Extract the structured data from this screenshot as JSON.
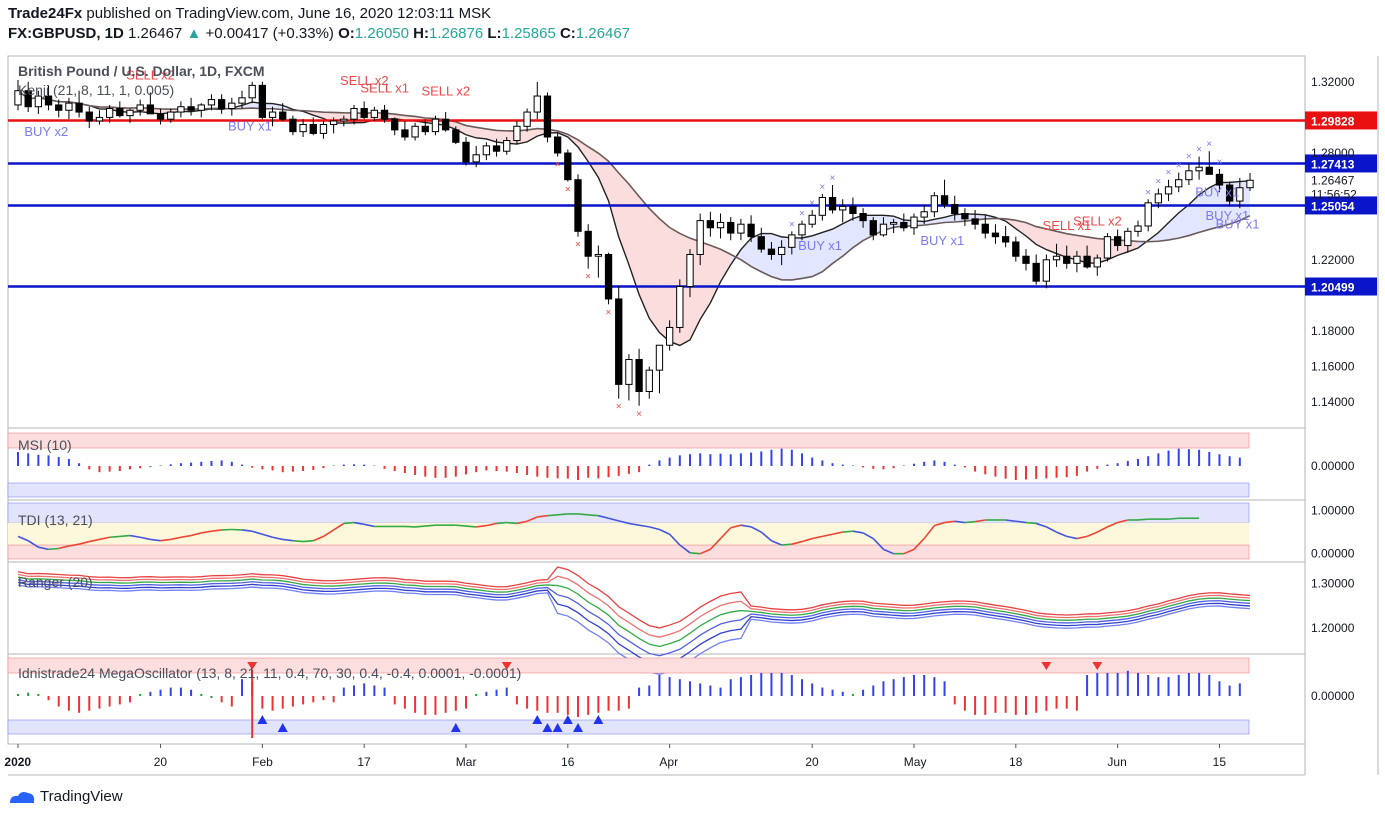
{
  "header": {
    "publisher": "Trade24Fx",
    "published_text": "published on TradingView.com, June 16, 2020 12:03:11 MSK",
    "symbol": "FX:GBPUSD, 1D",
    "last": "1.26467",
    "change": "+0.00417 (+0.33%)",
    "o_label": "O:",
    "o": "1.26050",
    "h_label": "H:",
    "h": "1.26876",
    "l_label": "L:",
    "l": "1.25865",
    "c_label": "C:",
    "c": "1.26467"
  },
  "footer": {
    "brand": "TradingView"
  },
  "colors": {
    "up": "#ffffff",
    "down": "#000000",
    "blue_line": "#0a14c8",
    "red_line": "#e81010",
    "sell": "#f04848",
    "buy": "#7a7af0"
  },
  "chart_data": [
    {
      "type": "candlestick",
      "title": "British Pound / U.S. Dollar, 1D, FXCM",
      "indicator_label": "Kenji (21, 8, 11, 1, 0.005)",
      "ylim": [
        1.13,
        1.33
      ],
      "y_ticks": [
        "1.32000",
        "1.28000",
        "1.26467",
        "1.22000",
        "1.18000",
        "1.16000",
        "1.14000"
      ],
      "x_ticks": [
        "2020",
        "20",
        "Feb",
        "17",
        "Mar",
        "16",
        "Apr",
        "20",
        "May",
        "18",
        "Jun",
        "15"
      ],
      "x_tick_index": [
        0,
        14,
        24,
        34,
        44,
        54,
        64,
        78,
        88,
        98,
        108,
        118
      ],
      "time_label": "11:56:52",
      "horizontal_levels": [
        {
          "value": 1.29828,
          "label": "1.29828",
          "color": "#e81010"
        },
        {
          "value": 1.27413,
          "label": "1.27413",
          "color": "#0a14c8"
        },
        {
          "value": 1.25054,
          "label": "1.25054",
          "color": "#0a14c8"
        },
        {
          "value": 1.20499,
          "label": "1.20499",
          "color": "#0a14c8"
        }
      ],
      "signals": [
        {
          "text": "BUY x2",
          "i": 2,
          "kind": "buy"
        },
        {
          "text": "SELL x2",
          "i": 12,
          "kind": "sell"
        },
        {
          "text": "BUY x1",
          "i": 22,
          "kind": "buy"
        },
        {
          "text": "SELL x2",
          "i": 33,
          "kind": "sell"
        },
        {
          "text": "SELL x1",
          "i": 35,
          "kind": "sell"
        },
        {
          "text": "SELL x2",
          "i": 41,
          "kind": "sell"
        },
        {
          "text": "BUY x1",
          "i": 78,
          "kind": "buy"
        },
        {
          "text": "BUY x1",
          "i": 90,
          "kind": "buy"
        },
        {
          "text": "SELL x1",
          "i": 102,
          "kind": "sell"
        },
        {
          "text": "SELL x2",
          "i": 105,
          "kind": "sell"
        },
        {
          "text": "BUY x1",
          "i": 117,
          "kind": "buy"
        },
        {
          "text": "BUY x1",
          "i": 118,
          "kind": "buy"
        },
        {
          "text": "BUY x1",
          "i": 119,
          "kind": "buy"
        }
      ],
      "candles": [
        [
          1.307,
          1.321,
          1.304,
          1.315
        ],
        [
          1.315,
          1.32,
          1.303,
          1.306
        ],
        [
          1.306,
          1.315,
          1.302,
          1.312
        ],
        [
          1.312,
          1.318,
          1.304,
          1.307
        ],
        [
          1.307,
          1.31,
          1.3,
          1.304
        ],
        [
          1.304,
          1.311,
          1.299,
          1.308
        ],
        [
          1.308,
          1.315,
          1.3,
          1.303
        ],
        [
          1.303,
          1.306,
          1.294,
          1.298
        ],
        [
          1.298,
          1.304,
          1.296,
          1.3
        ],
        [
          1.3,
          1.307,
          1.297,
          1.305
        ],
        [
          1.305,
          1.309,
          1.3,
          1.301
        ],
        [
          1.301,
          1.305,
          1.297,
          1.304
        ],
        [
          1.304,
          1.31,
          1.301,
          1.307
        ],
        [
          1.307,
          1.314,
          1.302,
          1.302
        ],
        [
          1.302,
          1.305,
          1.296,
          1.299
        ],
        [
          1.299,
          1.305,
          1.297,
          1.303
        ],
        [
          1.303,
          1.309,
          1.3,
          1.306
        ],
        [
          1.306,
          1.311,
          1.301,
          1.304
        ],
        [
          1.304,
          1.308,
          1.3,
          1.307
        ],
        [
          1.307,
          1.313,
          1.304,
          1.31
        ],
        [
          1.31,
          1.313,
          1.302,
          1.305
        ],
        [
          1.305,
          1.311,
          1.301,
          1.308
        ],
        [
          1.308,
          1.315,
          1.305,
          1.311
        ],
        [
          1.311,
          1.32,
          1.308,
          1.318
        ],
        [
          1.318,
          1.32,
          1.299,
          1.3
        ],
        [
          1.3,
          1.306,
          1.295,
          1.303
        ],
        [
          1.303,
          1.308,
          1.298,
          1.299
        ],
        [
          1.299,
          1.301,
          1.29,
          1.292
        ],
        [
          1.292,
          1.299,
          1.289,
          1.296
        ],
        [
          1.296,
          1.3,
          1.29,
          1.291
        ],
        [
          1.291,
          1.298,
          1.288,
          1.296
        ],
        [
          1.296,
          1.3,
          1.291,
          1.298
        ],
        [
          1.298,
          1.301,
          1.295,
          1.299
        ],
        [
          1.299,
          1.307,
          1.296,
          1.305
        ],
        [
          1.305,
          1.309,
          1.299,
          1.3
        ],
        [
          1.3,
          1.306,
          1.298,
          1.304
        ],
        [
          1.304,
          1.307,
          1.297,
          1.299
        ],
        [
          1.299,
          1.3,
          1.29,
          1.293
        ],
        [
          1.293,
          1.298,
          1.287,
          1.289
        ],
        [
          1.289,
          1.297,
          1.287,
          1.295
        ],
        [
          1.295,
          1.299,
          1.29,
          1.292
        ],
        [
          1.292,
          1.301,
          1.29,
          1.299
        ],
        [
          1.299,
          1.303,
          1.292,
          1.293
        ],
        [
          1.293,
          1.295,
          1.285,
          1.286
        ],
        [
          1.286,
          1.289,
          1.273,
          1.275
        ],
        [
          1.275,
          1.284,
          1.272,
          1.279
        ],
        [
          1.279,
          1.286,
          1.276,
          1.284
        ],
        [
          1.284,
          1.288,
          1.278,
          1.281
        ],
        [
          1.281,
          1.289,
          1.279,
          1.287
        ],
        [
          1.287,
          1.298,
          1.285,
          1.295
        ],
        [
          1.295,
          1.305,
          1.292,
          1.303
        ],
        [
          1.303,
          1.32,
          1.299,
          1.312
        ],
        [
          1.312,
          1.314,
          1.286,
          1.289
        ],
        [
          1.289,
          1.291,
          1.278,
          1.28
        ],
        [
          1.28,
          1.282,
          1.264,
          1.265
        ],
        [
          1.265,
          1.268,
          1.233,
          1.236
        ],
        [
          1.236,
          1.24,
          1.215,
          1.222
        ],
        [
          1.222,
          1.228,
          1.21,
          1.223
        ],
        [
          1.223,
          1.224,
          1.195,
          1.198
        ],
        [
          1.198,
          1.205,
          1.142,
          1.15
        ],
        [
          1.15,
          1.167,
          1.141,
          1.164
        ],
        [
          1.164,
          1.17,
          1.138,
          1.146
        ],
        [
          1.146,
          1.16,
          1.142,
          1.158
        ],
        [
          1.158,
          1.17,
          1.145,
          1.172
        ],
        [
          1.172,
          1.186,
          1.169,
          1.182
        ],
        [
          1.182,
          1.209,
          1.179,
          1.205
        ],
        [
          1.205,
          1.226,
          1.199,
          1.223
        ],
        [
          1.223,
          1.246,
          1.217,
          1.242
        ],
        [
          1.242,
          1.247,
          1.233,
          1.238
        ],
        [
          1.238,
          1.246,
          1.232,
          1.241
        ],
        [
          1.241,
          1.244,
          1.231,
          1.235
        ],
        [
          1.235,
          1.243,
          1.231,
          1.24
        ],
        [
          1.24,
          1.245,
          1.23,
          1.233
        ],
        [
          1.233,
          1.238,
          1.224,
          1.226
        ],
        [
          1.226,
          1.23,
          1.22,
          1.223
        ],
        [
          1.223,
          1.231,
          1.217,
          1.227
        ],
        [
          1.227,
          1.236,
          1.223,
          1.234
        ],
        [
          1.234,
          1.242,
          1.231,
          1.24
        ],
        [
          1.24,
          1.248,
          1.238,
          1.245
        ],
        [
          1.245,
          1.257,
          1.242,
          1.255
        ],
        [
          1.255,
          1.262,
          1.246,
          1.248
        ],
        [
          1.248,
          1.254,
          1.241,
          1.25
        ],
        [
          1.25,
          1.255,
          1.242,
          1.246
        ],
        [
          1.246,
          1.249,
          1.238,
          1.242
        ],
        [
          1.242,
          1.244,
          1.231,
          1.234
        ],
        [
          1.234,
          1.244,
          1.233,
          1.24
        ],
        [
          1.24,
          1.243,
          1.235,
          1.241
        ],
        [
          1.241,
          1.246,
          1.236,
          1.238
        ],
        [
          1.238,
          1.246,
          1.234,
          1.244
        ],
        [
          1.244,
          1.251,
          1.24,
          1.247
        ],
        [
          1.247,
          1.258,
          1.244,
          1.256
        ],
        [
          1.256,
          1.265,
          1.249,
          1.251
        ],
        [
          1.251,
          1.256,
          1.242,
          1.246
        ],
        [
          1.246,
          1.249,
          1.239,
          1.243
        ],
        [
          1.243,
          1.248,
          1.237,
          1.24
        ],
        [
          1.24,
          1.245,
          1.232,
          1.235
        ],
        [
          1.235,
          1.24,
          1.229,
          1.233
        ],
        [
          1.233,
          1.239,
          1.227,
          1.23
        ],
        [
          1.23,
          1.233,
          1.219,
          1.222
        ],
        [
          1.222,
          1.226,
          1.214,
          1.218
        ],
        [
          1.218,
          1.223,
          1.206,
          1.208
        ],
        [
          1.208,
          1.223,
          1.204,
          1.22
        ],
        [
          1.22,
          1.229,
          1.216,
          1.222
        ],
        [
          1.222,
          1.228,
          1.215,
          1.218
        ],
        [
          1.218,
          1.225,
          1.213,
          1.222
        ],
        [
          1.222,
          1.228,
          1.215,
          1.216
        ],
        [
          1.216,
          1.223,
          1.211,
          1.221
        ],
        [
          1.221,
          1.235,
          1.219,
          1.233
        ],
        [
          1.233,
          1.237,
          1.225,
          1.228
        ],
        [
          1.228,
          1.238,
          1.224,
          1.236
        ],
        [
          1.236,
          1.242,
          1.233,
          1.239
        ],
        [
          1.239,
          1.254,
          1.236,
          1.252
        ],
        [
          1.252,
          1.26,
          1.249,
          1.257
        ],
        [
          1.257,
          1.265,
          1.253,
          1.261
        ],
        [
          1.261,
          1.269,
          1.258,
          1.265
        ],
        [
          1.265,
          1.274,
          1.262,
          1.27
        ],
        [
          1.27,
          1.278,
          1.265,
          1.272
        ],
        [
          1.272,
          1.281,
          1.268,
          1.268
        ],
        [
          1.268,
          1.271,
          1.258,
          1.262
        ],
        [
          1.262,
          1.264,
          1.25,
          1.253
        ],
        [
          1.253,
          1.266,
          1.249,
          1.2605
        ],
        [
          1.2605,
          1.26876,
          1.25865,
          1.26467
        ]
      ]
    },
    {
      "type": "bar",
      "title": "MSI (10)",
      "y_ticks": [
        "0.00000"
      ],
      "ylim": [
        -1,
        1
      ],
      "values": [
        0.5,
        0.45,
        0.4,
        0.38,
        0.32,
        0.25,
        0.1,
        -0.12,
        -0.22,
        -0.2,
        -0.18,
        -0.12,
        -0.08,
        -0.04,
        0.02,
        0.06,
        0.1,
        0.12,
        0.15,
        0.18,
        0.2,
        0.15,
        0.05,
        -0.06,
        -0.12,
        -0.16,
        -0.22,
        -0.2,
        -0.18,
        -0.14,
        -0.08,
        0.02,
        0.05,
        0.06,
        0.05,
        0.02,
        -0.1,
        -0.18,
        -0.25,
        -0.32,
        -0.38,
        -0.42,
        -0.42,
        -0.38,
        -0.3,
        -0.22,
        -0.16,
        -0.18,
        -0.2,
        -0.25,
        -0.32,
        -0.38,
        -0.42,
        -0.44,
        -0.45,
        -0.5,
        -0.42,
        -0.44,
        -0.4,
        -0.35,
        -0.28,
        -0.22,
        0.05,
        0.2,
        0.3,
        0.38,
        0.42,
        0.45,
        0.42,
        0.44,
        0.42,
        0.45,
        0.48,
        0.52,
        0.58,
        0.62,
        0.58,
        0.45,
        0.3,
        0.2,
        0.1,
        0.05,
        0.02,
        -0.05,
        -0.1,
        -0.12,
        -0.08,
        0.02,
        0.08,
        0.15,
        0.2,
        0.15,
        0.05,
        -0.05,
        -0.2,
        -0.3,
        -0.38,
        -0.45,
        -0.5,
        -0.48,
        -0.46,
        -0.44,
        -0.42,
        -0.4,
        -0.35,
        -0.2,
        -0.1,
        0.05,
        0.1,
        0.18,
        0.25,
        0.35,
        0.45,
        0.55,
        0.62,
        0.6,
        0.58,
        0.5,
        0.42,
        0.35,
        0.3
      ]
    },
    {
      "type": "line",
      "title": "TDI (13, 21)",
      "y_ticks": [
        "1.00000",
        "0.00000"
      ],
      "ylim": [
        -0.1,
        1.15
      ],
      "values": [
        0.4,
        0.3,
        0.15,
        0.1,
        0.12,
        0.18,
        0.22,
        0.28,
        0.33,
        0.38,
        0.4,
        0.42,
        0.38,
        0.33,
        0.3,
        0.33,
        0.38,
        0.42,
        0.48,
        0.52,
        0.55,
        0.56,
        0.55,
        0.52,
        0.45,
        0.38,
        0.33,
        0.3,
        0.28,
        0.3,
        0.4,
        0.55,
        0.7,
        0.72,
        0.68,
        0.63,
        0.63,
        0.63,
        0.63,
        0.62,
        0.64,
        0.66,
        0.66,
        0.66,
        0.64,
        0.62,
        0.65,
        0.7,
        0.72,
        0.7,
        0.75,
        0.85,
        0.88,
        0.9,
        0.92,
        0.92,
        0.9,
        0.88,
        0.82,
        0.76,
        0.7,
        0.66,
        0.62,
        0.56,
        0.45,
        0.2,
        0.02,
        0.0,
        0.1,
        0.35,
        0.6,
        0.66,
        0.62,
        0.5,
        0.3,
        0.2,
        0.22,
        0.28,
        0.35,
        0.4,
        0.45,
        0.5,
        0.52,
        0.48,
        0.35,
        0.1,
        0.0,
        0.0,
        0.1,
        0.35,
        0.65,
        0.72,
        0.75,
        0.72,
        0.74,
        0.78,
        0.78,
        0.78,
        0.75,
        0.72,
        0.7,
        0.62,
        0.5,
        0.4,
        0.35,
        0.4,
        0.5,
        0.62,
        0.72,
        0.78,
        0.78,
        0.8,
        0.8,
        0.8,
        0.82,
        0.82,
        0.82
      ]
    },
    {
      "type": "line",
      "title": "Ranger (20)",
      "y_ticks": [
        "1.30000",
        "1.20000"
      ],
      "ylim": [
        1.15,
        1.34
      ]
    },
    {
      "type": "bar",
      "title": "Idnistrade24 MegaOscillator (13, 8, 21, 11, 0.4, 70, 30, 0.4, -0.4, 0.0001, -0.0001)",
      "y_ticks": [
        "0.00000"
      ],
      "ylim": [
        -1,
        1
      ],
      "values": [
        0.05,
        0.08,
        0.05,
        -0.1,
        -0.25,
        -0.35,
        -0.4,
        -0.35,
        -0.3,
        -0.25,
        -0.2,
        -0.15,
        0.05,
        0.1,
        0.15,
        0.2,
        0.2,
        0.15,
        0.05,
        -0.05,
        -0.15,
        -0.25,
        0.4,
        0.35,
        -0.3,
        -0.35,
        -0.3,
        -0.25,
        -0.2,
        -0.15,
        -0.1,
        -0.15,
        0.2,
        0.25,
        0.3,
        0.25,
        0.2,
        -0.2,
        -0.3,
        -0.4,
        -0.45,
        -0.45,
        -0.4,
        -0.35,
        -0.3,
        0.05,
        0.1,
        0.15,
        0.2,
        -0.2,
        -0.3,
        -0.35,
        -0.4,
        -0.4,
        -0.45,
        -0.5,
        -0.45,
        -0.4,
        -0.35,
        -0.35,
        -0.3,
        0.2,
        0.25,
        0.5,
        0.45,
        0.4,
        0.35,
        0.3,
        0.25,
        0.2,
        0.4,
        0.45,
        0.5,
        0.55,
        0.55,
        0.55,
        0.5,
        0.4,
        0.3,
        0.2,
        0.15,
        0.1,
        0.05,
        0.15,
        0.25,
        0.35,
        0.4,
        0.45,
        0.5,
        0.5,
        0.45,
        0.35,
        -0.2,
        -0.35,
        -0.45,
        -0.45,
        -0.4,
        -0.4,
        -0.45,
        -0.45,
        -0.4,
        -0.35,
        -0.3,
        -0.3,
        -0.35,
        0.5,
        0.55,
        0.55,
        0.55,
        0.6,
        0.55,
        0.5,
        0.45,
        0.45,
        0.5,
        0.55,
        0.55,
        0.5,
        0.35,
        0.25,
        0.3
      ],
      "down_markers_idx": [
        23,
        48,
        101,
        106
      ],
      "up_markers_idx": [
        24,
        26,
        43,
        51,
        52,
        53,
        54,
        55,
        57
      ]
    }
  ]
}
